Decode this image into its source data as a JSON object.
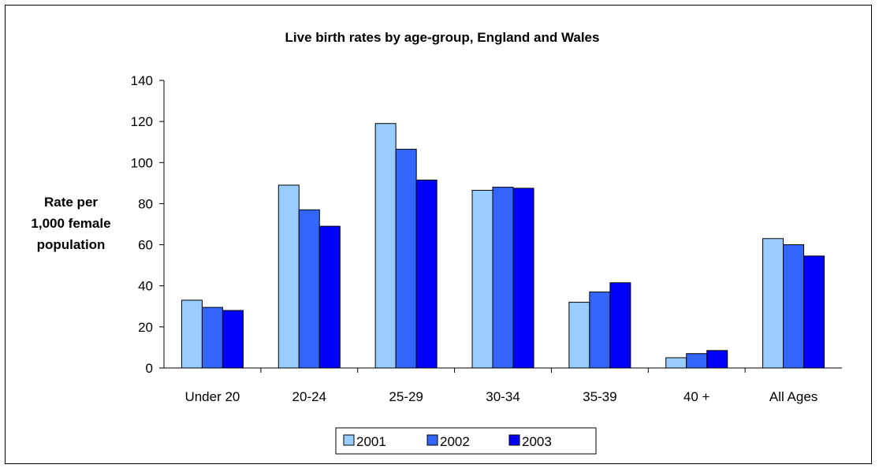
{
  "chart_data": {
    "type": "bar",
    "title": "Live birth rates by age-group, England and Wales",
    "ylabel": [
      "Rate per",
      "1,000 female",
      "population"
    ],
    "xlabel": "",
    "categories": [
      "Under 20",
      "20-24",
      "25-29",
      "30-34",
      "35-39",
      "40 +",
      "All Ages"
    ],
    "series": [
      {
        "name": "2001",
        "color": "#99ccff",
        "values": [
          33,
          89,
          119,
          86.5,
          32,
          5,
          63
        ]
      },
      {
        "name": "2002",
        "color": "#3366ff",
        "values": [
          29.5,
          77,
          106.5,
          88,
          37,
          7,
          60
        ]
      },
      {
        "name": "2003",
        "color": "#0000ff",
        "values": [
          28,
          69,
          91.5,
          87.5,
          41.5,
          8.5,
          54.5
        ]
      }
    ],
    "ylim": [
      0,
      140
    ],
    "yticks": [
      0,
      20,
      40,
      60,
      80,
      100,
      120,
      140
    ],
    "grid": false,
    "legend": "bottom-center"
  }
}
